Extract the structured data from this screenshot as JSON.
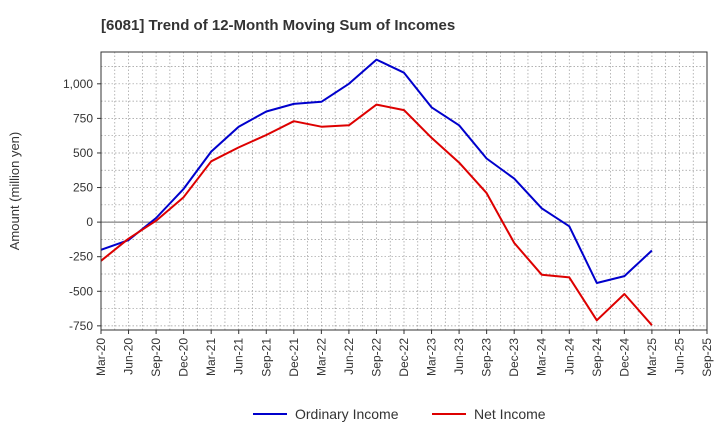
{
  "chart_data": {
    "type": "line",
    "title": "[6081]  Trend of 12-Month Moving Sum of Incomes",
    "xlabel": "",
    "ylabel": "Amount (million yen)",
    "categories": [
      "Mar-20",
      "Jun-20",
      "Sep-20",
      "Dec-20",
      "Mar-21",
      "Jun-21",
      "Sep-21",
      "Dec-21",
      "Mar-22",
      "Jun-22",
      "Sep-22",
      "Dec-22",
      "Mar-23",
      "Jun-23",
      "Sep-23",
      "Dec-23",
      "Mar-24",
      "Jun-24",
      "Sep-24",
      "Dec-24",
      "Mar-25",
      "Jun-25",
      "Sep-25"
    ],
    "ylim": [
      -780,
      1230
    ],
    "yticks": [
      -750,
      -500,
      -250,
      0,
      250,
      500,
      750,
      1000
    ],
    "ytick_labels": [
      "-750",
      "-500",
      "-250",
      "0",
      "250",
      "500",
      "750",
      "1,000"
    ],
    "grid": true,
    "legend_position": "bottom",
    "series": [
      {
        "name": "Ordinary Income",
        "color": "#0000cc",
        "values": [
          -200,
          -130,
          30,
          240,
          510,
          690,
          800,
          855,
          870,
          1000,
          1175,
          1080,
          830,
          700,
          460,
          315,
          100,
          -30,
          -440,
          -390,
          -205,
          null,
          null
        ]
      },
      {
        "name": "Net Income",
        "color": "#dd0000",
        "values": [
          -280,
          -120,
          10,
          180,
          440,
          540,
          630,
          730,
          690,
          700,
          850,
          810,
          610,
          430,
          210,
          -150,
          -380,
          -400,
          -710,
          -520,
          -745,
          null,
          null
        ]
      }
    ]
  }
}
